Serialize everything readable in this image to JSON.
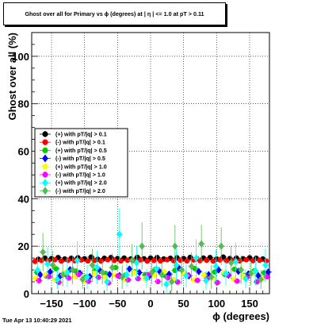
{
  "title": "Ghost over all for Primary vs ϕ (degrees) at | η | <= 1.0 at pT > 0.11",
  "footer_date": "Tue Apr 13 10:40:29 2021",
  "chart_data": {
    "type": "scatter",
    "xlabel": "ϕ (degrees)",
    "ylabel": "Ghost over all (%)",
    "xlim": [
      -180,
      180
    ],
    "ylim": [
      0,
      110
    ],
    "xticks": [
      -150,
      -100,
      -50,
      0,
      50,
      100,
      150
    ],
    "xtick_labels": [
      "−150",
      "−100",
      "−50",
      "0",
      "50",
      "100",
      "150"
    ],
    "yticks": [
      0,
      20,
      40,
      60,
      80,
      100
    ],
    "ytick_labels": [
      "0",
      "20",
      "40",
      "60",
      "80",
      "100"
    ],
    "grid": true,
    "legend_position": "middle-left",
    "series": [
      {
        "name": "(+) with pT/|q| > 0.1",
        "color": "#000000",
        "marker": "circle",
        "points": [
          [
            -170,
            14.5
          ],
          [
            -160,
            15
          ],
          [
            -150,
            14.8
          ],
          [
            -140,
            15.2
          ],
          [
            -130,
            14.6
          ],
          [
            -120,
            14.9
          ],
          [
            -110,
            15.1
          ],
          [
            -100,
            14.7
          ],
          [
            -90,
            15.4
          ],
          [
            -80,
            14.5
          ],
          [
            -70,
            14.9
          ],
          [
            -60,
            15.2
          ],
          [
            -50,
            14.8
          ],
          [
            -40,
            15
          ],
          [
            -30,
            14.6
          ],
          [
            -20,
            15.3
          ],
          [
            -10,
            14.7
          ],
          [
            0,
            15
          ],
          [
            10,
            15.2
          ],
          [
            20,
            14.6
          ],
          [
            30,
            14.9
          ],
          [
            40,
            15.1
          ],
          [
            50,
            14.8
          ],
          [
            60,
            15.3
          ],
          [
            70,
            14.7
          ],
          [
            80,
            15
          ],
          [
            90,
            15.2
          ],
          [
            100,
            14.6
          ],
          [
            110,
            15.4
          ],
          [
            120,
            14.8
          ],
          [
            130,
            15
          ],
          [
            140,
            14.7
          ],
          [
            150,
            15.1
          ],
          [
            160,
            14.9
          ],
          [
            170,
            14.6
          ]
        ]
      },
      {
        "name": "(-) with pT/|q| > 0.1",
        "color": "#ff0000",
        "marker": "circle",
        "points": [
          [
            -175,
            13.6
          ],
          [
            -165,
            14
          ],
          [
            -155,
            13.8
          ],
          [
            -145,
            14.3
          ],
          [
            -135,
            13.7
          ],
          [
            -125,
            14.1
          ],
          [
            -115,
            13.9
          ],
          [
            -105,
            14.2
          ],
          [
            -95,
            13.8
          ],
          [
            -85,
            14
          ],
          [
            -75,
            13.7
          ],
          [
            -65,
            14.3
          ],
          [
            -55,
            14
          ],
          [
            -45,
            13.8
          ],
          [
            -35,
            14.1
          ],
          [
            -25,
            13.9
          ],
          [
            -15,
            14.2
          ],
          [
            -5,
            13.7
          ],
          [
            5,
            14
          ],
          [
            15,
            13.8
          ],
          [
            25,
            14.3
          ],
          [
            35,
            13.9
          ],
          [
            45,
            14.1
          ],
          [
            55,
            13.8
          ],
          [
            65,
            14.2
          ],
          [
            75,
            13.9
          ],
          [
            85,
            14.1
          ],
          [
            95,
            13.7
          ],
          [
            105,
            14.2
          ],
          [
            115,
            13.9
          ],
          [
            125,
            14
          ],
          [
            135,
            13.8
          ],
          [
            145,
            14.3
          ],
          [
            155,
            13.9
          ],
          [
            165,
            14.1
          ],
          [
            175,
            13.8
          ]
        ]
      },
      {
        "name": "(+) with pT/|q| > 0.5",
        "color": "#00cc00",
        "marker": "circle",
        "points": [
          [
            -172,
            9
          ],
          [
            -158,
            7.5
          ],
          [
            -143,
            10.5
          ],
          [
            -128,
            8
          ],
          [
            -113,
            9.5
          ],
          [
            -98,
            7
          ],
          [
            -83,
            10
          ],
          [
            -68,
            8.5
          ],
          [
            -53,
            11
          ],
          [
            -38,
            7.8
          ],
          [
            -23,
            9.2
          ],
          [
            -8,
            8
          ],
          [
            7,
            10.2
          ],
          [
            22,
            7.6
          ],
          [
            37,
            9.8
          ],
          [
            52,
            8.4
          ],
          [
            67,
            10.6
          ],
          [
            82,
            7.9
          ],
          [
            97,
            9.1
          ],
          [
            112,
            8.2
          ],
          [
            127,
            10.3
          ],
          [
            142,
            7.7
          ],
          [
            157,
            9.6
          ],
          [
            172,
            8.8
          ]
        ]
      },
      {
        "name": "(-) with pT/|q| > 0.5",
        "color": "#0000ff",
        "marker": "diamond",
        "points": [
          [
            -167,
            8
          ],
          [
            -152,
            9.2
          ],
          [
            -137,
            7.4
          ],
          [
            -122,
            10.1
          ],
          [
            -107,
            8.6
          ],
          [
            -92,
            7.2
          ],
          [
            -77,
            9.8
          ],
          [
            -62,
            8.1
          ],
          [
            -47,
            7.6
          ],
          [
            -32,
            10.4
          ],
          [
            -17,
            8.9
          ],
          [
            -2,
            7.3
          ],
          [
            13,
            9.6
          ],
          [
            28,
            8.2
          ],
          [
            43,
            10.8
          ],
          [
            58,
            7.5
          ],
          [
            73,
            9.3
          ],
          [
            88,
            8
          ],
          [
            103,
            10
          ],
          [
            118,
            7.8
          ],
          [
            133,
            9.4
          ],
          [
            148,
            8.3
          ],
          [
            163,
            7.6
          ],
          [
            178,
            9.1
          ]
        ]
      },
      {
        "name": "(+) with pT/|q| > 1.0",
        "color": "#ffff00",
        "marker": "circle",
        "points": [
          [
            -174,
            6.5
          ],
          [
            -159,
            8
          ],
          [
            -144,
            5.8
          ],
          [
            -129,
            9
          ],
          [
            -114,
            7.2
          ],
          [
            -99,
            5.5
          ],
          [
            -84,
            8.6
          ],
          [
            -69,
            6.9
          ],
          [
            -54,
            7.8
          ],
          [
            -39,
            5.9
          ],
          [
            -24,
            8.8
          ],
          [
            -9,
            6.3
          ],
          [
            6,
            7.6
          ],
          [
            21,
            9.2
          ],
          [
            36,
            6
          ],
          [
            51,
            8.3
          ],
          [
            66,
            5.7
          ],
          [
            81,
            7.9
          ],
          [
            96,
            6.6
          ],
          [
            111,
            8.9
          ],
          [
            126,
            6.1
          ],
          [
            141,
            7.4
          ],
          [
            156,
            8.7
          ],
          [
            171,
            6.4
          ]
        ]
      },
      {
        "name": "(-) with pT/|q| > 1.0",
        "color": "#ff00ff",
        "marker": "circle",
        "points": [
          [
            -169,
            5.5
          ],
          [
            -154,
            7.2
          ],
          [
            -139,
            4.8
          ],
          [
            -124,
            6.6
          ],
          [
            -109,
            8.1
          ],
          [
            -94,
            5.2
          ],
          [
            -79,
            6.9
          ],
          [
            -64,
            4.6
          ],
          [
            -49,
            7.5
          ],
          [
            -34,
            5.8
          ],
          [
            -19,
            6.3
          ],
          [
            -4,
            8
          ],
          [
            11,
            5.1
          ],
          [
            26,
            6.7
          ],
          [
            41,
            4.9
          ],
          [
            56,
            7.7
          ],
          [
            71,
            5.6
          ],
          [
            86,
            6.4
          ],
          [
            101,
            4.7
          ],
          [
            116,
            7.9
          ],
          [
            131,
            5.3
          ],
          [
            146,
            6.8
          ],
          [
            161,
            5
          ],
          [
            176,
            7.1
          ]
        ]
      },
      {
        "name": "(+) with pT/|q| > 2.0",
        "color": "#00ffff",
        "marker": "diamond",
        "points": [
          [
            -171,
            10
          ],
          [
            -156,
            12.5
          ],
          [
            -141,
            6
          ],
          [
            -126,
            9
          ],
          [
            -111,
            14
          ],
          [
            -96,
            7
          ],
          [
            -81,
            11
          ],
          [
            -66,
            5
          ],
          [
            -47,
            25
          ],
          [
            -36,
            8
          ],
          [
            -21,
            13
          ],
          [
            -6,
            6.5
          ],
          [
            9,
            10.5
          ],
          [
            24,
            4
          ],
          [
            39,
            12
          ],
          [
            54,
            7.5
          ],
          [
            69,
            15
          ],
          [
            84,
            5.5
          ],
          [
            99,
            11.5
          ],
          [
            114,
            8.5
          ],
          [
            129,
            13.5
          ],
          [
            144,
            6.2
          ],
          [
            159,
            9.6
          ],
          [
            174,
            12
          ]
        ],
        "yerr": [
          6,
          7,
          4,
          6,
          8,
          5,
          7,
          4,
          11,
          5,
          7,
          4,
          6,
          4,
          7,
          5,
          8,
          4,
          7,
          5,
          8,
          4,
          6,
          7
        ]
      },
      {
        "name": "(-) with pT/|q| > 2.0",
        "color": "#55bb55",
        "marker": "diamond",
        "points": [
          [
            -163,
            17.5
          ],
          [
            -148,
            12
          ],
          [
            -133,
            8
          ],
          [
            -118,
            10
          ],
          [
            -103,
            6
          ],
          [
            -88,
            12
          ],
          [
            -73,
            9
          ],
          [
            -58,
            11
          ],
          [
            -43,
            7
          ],
          [
            -28,
            14
          ],
          [
            -13,
            20
          ],
          [
            2,
            9
          ],
          [
            17,
            8
          ],
          [
            32,
            5
          ],
          [
            37,
            20
          ],
          [
            47,
            10
          ],
          [
            62,
            11.5
          ],
          [
            77,
            21
          ],
          [
            92,
            7
          ],
          [
            107,
            20
          ],
          [
            122,
            13
          ],
          [
            137,
            10
          ],
          [
            152,
            8.5
          ],
          [
            167,
            6
          ]
        ],
        "yerr": [
          8,
          6,
          5,
          6,
          4,
          7,
          5,
          6,
          5,
          7,
          10,
          5,
          5,
          4,
          9,
          6,
          6,
          8,
          5,
          8,
          7,
          6,
          5,
          4
        ]
      }
    ]
  }
}
